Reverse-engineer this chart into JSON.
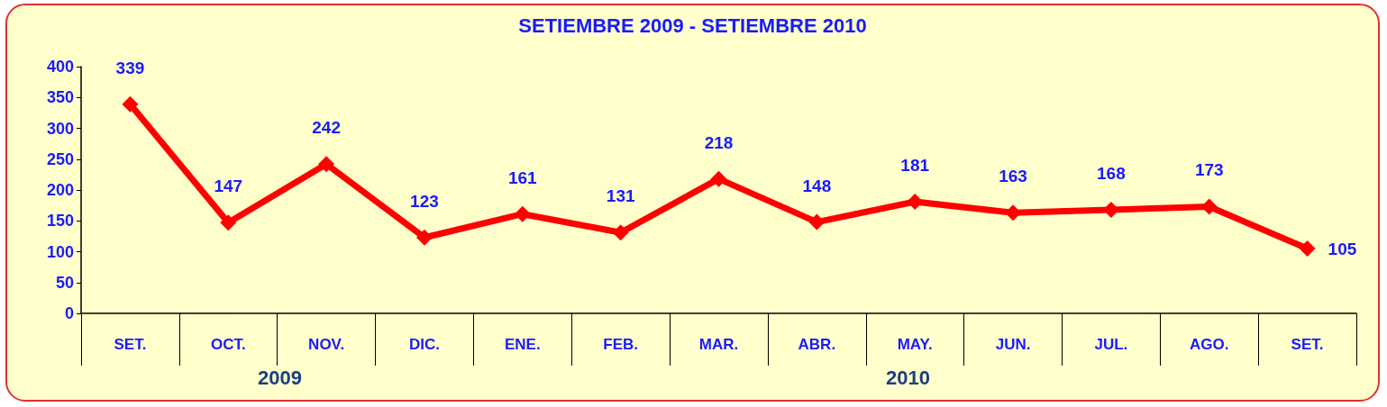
{
  "chart_data": {
    "type": "line",
    "title": "SETIEMBRE 2009 - SETIEMBRE 2010",
    "categories": [
      "SET.",
      "OCT.",
      "NOV.",
      "DIC.",
      "ENE.",
      "FEB.",
      "MAR.",
      "ABR.",
      "MAY.",
      "JUN.",
      "JUL.",
      "AGO.",
      "SET."
    ],
    "series": [
      {
        "color": "#ff0000",
        "values": [
          339,
          147,
          242,
          123,
          161,
          131,
          218,
          148,
          181,
          163,
          168,
          173,
          105
        ]
      }
    ],
    "ylim": [
      0,
      400
    ],
    "yticks": [
      0,
      50,
      100,
      150,
      200,
      250,
      300,
      350,
      400
    ],
    "annotations": [
      "2009",
      "2010"
    ],
    "data_labels": true,
    "grid": false,
    "marker": "diamond",
    "line_style": "solid"
  }
}
